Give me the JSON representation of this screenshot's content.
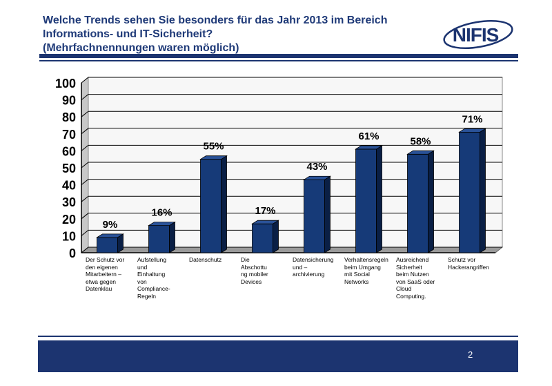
{
  "slide": {
    "title_lines": [
      "Welche Trends sehen Sie besonders für das Jahr 2013 im Bereich",
      "Informations- und IT-Sicherheit?",
      "(Mehrfachnennungen waren möglich)"
    ],
    "logo_text": "NIFIS",
    "page_number": "2"
  },
  "colors": {
    "bar_front": "#163a78",
    "bar_side": "#0a1f45",
    "bar_top": "#2a5298",
    "title": "#1f3a78",
    "rules": "#1c3470",
    "plot_bg": "#f7f7f7"
  },
  "chart_data": {
    "type": "bar",
    "title": "Welche Trends sehen Sie besonders für das Jahr 2013 im Bereich Informations- und IT-Sicherheit?",
    "subtitle": "(Mehrfachnennungen waren möglich)",
    "categories": [
      "Der Schutz vor den eigenen Mitarbeitern – etwa gegen Datenklau",
      "Aufstellung und Einhaltung von Compliance-Regeln",
      "Datenschutz",
      "Die Abschottung mobiler Devices",
      "Datensicherung und –archivierung",
      "Verhaltensregeln beim Umgang mit Social Networks",
      "Ausreichend Sicherheit beim Nutzen von SaaS oder Cloud Computing.",
      "Schutz vor Hackerangriffen"
    ],
    "category_label_lines": [
      [
        "Der Schutz vor",
        "den eigenen",
        "Mitarbeitern –",
        "etwa gegen",
        "Datenklau"
      ],
      [
        "Aufstellung",
        "und",
        "Einhaltung",
        "von",
        "Compliance-",
        "Regeln"
      ],
      [
        "Datenschutz"
      ],
      [
        "Die",
        "Abschottu",
        "ng mobiler",
        "Devices"
      ],
      [
        "Datensicherung",
        "und –",
        "archivierung"
      ],
      [
        "Verhaltensregeln",
        "beim Umgang",
        "mit Social",
        "Networks"
      ],
      [
        "Ausreichend",
        "Sicherheit",
        "beim Nutzen",
        "von SaaS oder",
        "Cloud",
        "Computing."
      ],
      [
        "Schutz vor",
        "Hackerangriffen"
      ]
    ],
    "values": [
      9,
      16,
      55,
      17,
      43,
      61,
      58,
      71
    ],
    "data_labels": [
      "9%",
      "16%",
      "55%",
      "17%",
      "43%",
      "61%",
      "58%",
      "71%"
    ],
    "ylim": [
      0,
      100
    ],
    "yticks": [
      0,
      10,
      20,
      30,
      40,
      50,
      60,
      70,
      80,
      90,
      100
    ],
    "xlabel": "",
    "ylabel": "",
    "grid": true,
    "legend": "none"
  }
}
